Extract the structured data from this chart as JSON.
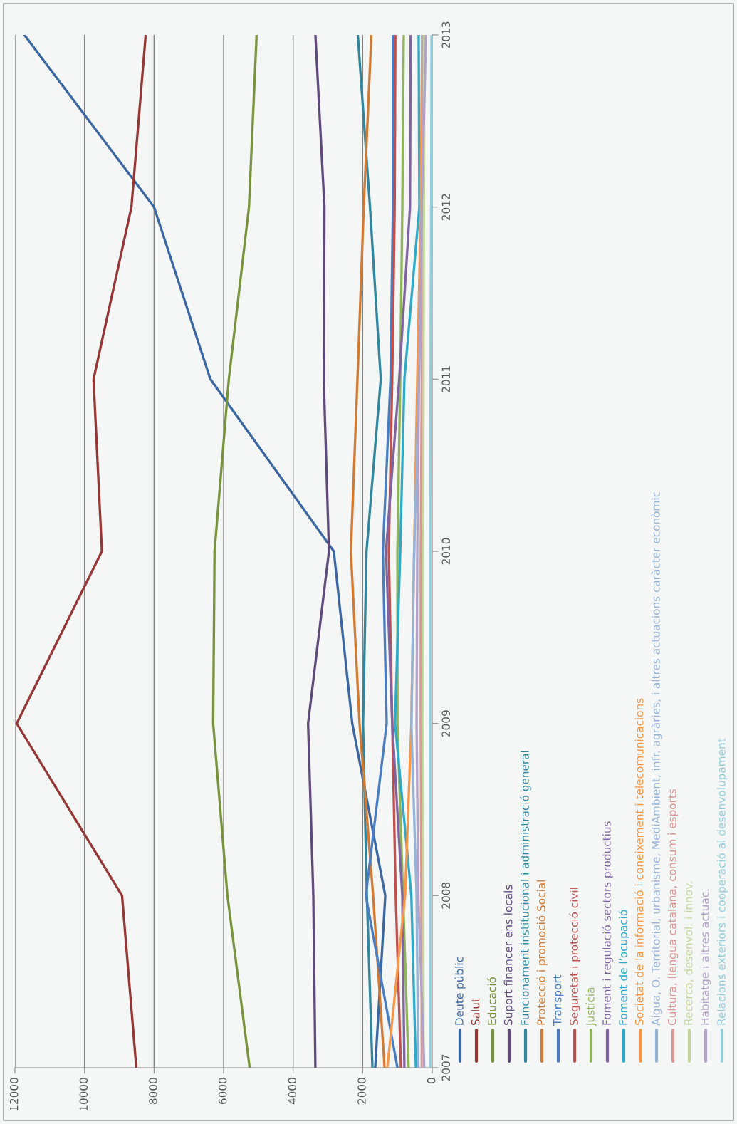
{
  "chart_data": {
    "type": "line",
    "x": [
      2007,
      2008,
      2009,
      2010,
      2011,
      2012,
      2013
    ],
    "orientation": "horizontal",
    "ylim": [
      2007,
      2013
    ],
    "yticks": [
      2007,
      2008,
      2009,
      2010,
      2011,
      2012,
      2013
    ],
    "xlim": [
      12000,
      0
    ],
    "xticks": [
      0,
      2000,
      4000,
      6000,
      8000,
      10000,
      12000
    ],
    "grid": "x",
    "legend": "right",
    "series": [
      {
        "name": "Deute públic",
        "color": "#3a67a2",
        "values": [
          1640,
          1350,
          2300,
          2830,
          6380,
          8000,
          11730
        ]
      },
      {
        "name": "Salut",
        "color": "#953735",
        "values": [
          8510,
          8920,
          11950,
          9500,
          9740,
          8650,
          8240
        ]
      },
      {
        "name": "Educació",
        "color": "#77933c",
        "values": [
          5250,
          5890,
          6300,
          6260,
          5850,
          5270,
          5050
        ]
      },
      {
        "name": "Suport financer ens locals",
        "color": "#604a7b",
        "values": [
          3360,
          3420,
          3570,
          2970,
          3120,
          3100,
          3360
        ]
      },
      {
        "name": "Funcionament institucional i administració general",
        "color": "#31859c",
        "values": [
          1720,
          1880,
          1990,
          1890,
          1480,
          1790,
          2140
        ]
      },
      {
        "name": "Protecció i promoció Social",
        "color": "#d07a33",
        "values": [
          1370,
          1700,
          2090,
          2340,
          2150,
          1970,
          1750
        ]
      },
      {
        "name": "Transport",
        "color": "#4a7cc0",
        "values": [
          1000,
          1910,
          1310,
          1420,
          1200,
          1130,
          1130
        ]
      },
      {
        "name": "Seguretat i protecció civil",
        "color": "#c0504d",
        "values": [
          900,
          1050,
          1150,
          1250,
          1150,
          1080,
          1060
        ]
      },
      {
        "name": "Justícia",
        "color": "#8db558",
        "values": [
          680,
          840,
          1000,
          1000,
          920,
          860,
          820
        ]
      },
      {
        "name": "Foment i regulació sectors productius",
        "color": "#8064a2",
        "values": [
          800,
          860,
          1150,
          1330,
          950,
          640,
          620
        ]
      },
      {
        "name": "Foment de l'ocupació",
        "color": "#2eaac8",
        "values": [
          470,
          600,
          1070,
          920,
          800,
          370,
          390
        ]
      },
      {
        "name": "Societat de la informació i coneixement i telecomunicacions",
        "color": "#f79646",
        "values": [
          1290,
          780,
          600,
          520,
          430,
          330,
          290
        ]
      },
      {
        "name": "Aigua, O. Territorial, urbanisme, MediAmbient, infr. agràries, i altres actuacions caràcter econòmic",
        "color": "#95b3d7",
        "values": [
          400,
          450,
          600,
          520,
          380,
          300,
          280
        ]
      },
      {
        "name": "Cultura, llengua catalana, consum i esports",
        "color": "#d99694",
        "values": [
          300,
          310,
          330,
          330,
          300,
          280,
          260
        ]
      },
      {
        "name": "Recerca, desenvol. i innov.",
        "color": "#c3d69b",
        "values": [
          250,
          260,
          280,
          270,
          250,
          240,
          230
        ]
      },
      {
        "name": "Habitatge i altres actuac.",
        "color": "#b2a2c7",
        "values": [
          230,
          400,
          450,
          430,
          380,
          300,
          180
        ]
      },
      {
        "name": "Relacions exteriors i cooperació al desenvolupament",
        "color": "#92cddc",
        "values": [
          60,
          60,
          60,
          60,
          50,
          30,
          20
        ]
      }
    ]
  }
}
